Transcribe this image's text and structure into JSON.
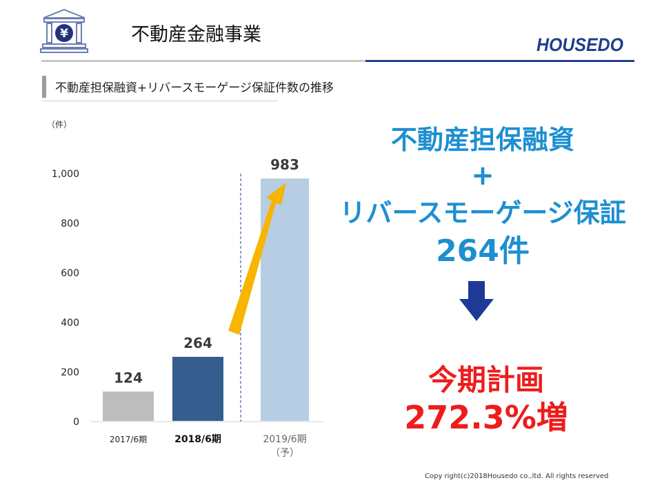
{
  "header": {
    "title": "不動産金融事業",
    "logo_text": "HOUSEDO",
    "icon": "bank-yen-icon",
    "icon_symbol": "¥",
    "rule_color": "#1f3f8c"
  },
  "section": {
    "subtitle": "不動産担保融資+リバースモーゲージ保証件数の推移"
  },
  "headline": {
    "line1": "不動産担保融資",
    "plus": "+",
    "line2": "リバースモーゲージ保証",
    "count": "264件",
    "color": "#1d8fd1"
  },
  "arrow_icon": "down-arrow-icon",
  "plan": {
    "line1": "今期計画",
    "line2": "272.3%増",
    "color": "#ee1c1c"
  },
  "footer": {
    "copyright": "Copy right(c)2018Housedo co.,ltd. All rights reserved"
  },
  "chart_data": {
    "type": "bar",
    "unit_label": "（件）",
    "categories": [
      "2017/6期",
      "2018/6期",
      "2019/6期"
    ],
    "category_sub": [
      "",
      "",
      "（予）"
    ],
    "values": [
      124,
      264,
      983
    ],
    "value_labels": [
      "124",
      "264",
      "983"
    ],
    "bar_colors": [
      "#bdbdbd",
      "#355e8f",
      "#b7cde4"
    ],
    "yticks": [
      0,
      200,
      400,
      600,
      800,
      1000
    ],
    "ytick_labels": [
      "0",
      "200",
      "400",
      "600",
      "800",
      "1,000"
    ],
    "ylim": [
      0,
      1000
    ],
    "grid": false,
    "growth_arrow_color": "#f7b500"
  }
}
